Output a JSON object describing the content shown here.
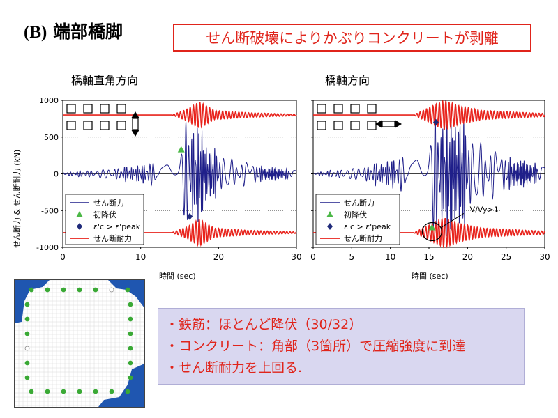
{
  "slide": {
    "title_prefix": "(B)",
    "title": "端部橋脚",
    "callout": "せん断破壊によりかぶりコンクリートが剥離",
    "y_axis_label": "せん断力 & せん断耐力 (kN)",
    "x_axis_label": "時間 (sec)",
    "summary": [
      "・鉄筋：ほとんど降伏（30/32）",
      "・コンクリート：角部（3箇所）で圧縮強度に到達",
      "・せん断耐力を上回る."
    ],
    "colors": {
      "accent_red": "#e0241b",
      "shear_force": "#1f1f8a",
      "capacity": "#e8231c",
      "yield_marker": "#4cb847",
      "peak_marker": "#1f2a7a",
      "summary_bg": "#d9d7f0",
      "section_fill": "#1f56b0",
      "rebar": "#3aa935"
    }
  },
  "chart_data": [
    {
      "type": "line",
      "title": "橋軸直角方向",
      "xlabel": "時間 (sec)",
      "ylabel": "せん断力 & せん断耐力 (kN)",
      "xlim": [
        0,
        30
      ],
      "ylim": [
        -1000,
        1000
      ],
      "xticks": [
        0,
        10,
        20,
        30
      ],
      "yticks": [
        -1000,
        -500,
        0,
        500,
        1000
      ],
      "grid": "dotted horizontal at ±500",
      "legend": [
        "せん断力",
        "初降伏",
        "ε'c > ε'peak",
        "せん断耐力"
      ],
      "legend_position": "bottom-left",
      "series": [
        {
          "name": "せん断力",
          "kind": "response",
          "envelope": [
            [
              0,
              20
            ],
            [
              5,
              80
            ],
            [
              10,
              130
            ],
            [
              13,
              260
            ],
            [
              15,
              500
            ],
            [
              16.5,
              900
            ],
            [
              17.5,
              700
            ],
            [
              19,
              400
            ],
            [
              22,
              200
            ],
            [
              26,
              110
            ],
            [
              30,
              70
            ]
          ]
        },
        {
          "name": "せん断耐力",
          "kind": "capacity",
          "base": 800,
          "disturbance": [
            [
              14,
              0
            ],
            [
              16,
              80
            ],
            [
              17.5,
              180
            ],
            [
              19.5,
              60
            ],
            [
              24,
              30
            ],
            [
              30,
              10
            ]
          ]
        }
      ],
      "points": [
        {
          "name": "初降伏",
          "x": 15.2,
          "y": 330
        },
        {
          "name": "ε'c > ε'peak",
          "x": 16.3,
          "y": -580
        }
      ]
    },
    {
      "type": "line",
      "title": "橋軸方向",
      "xlabel": "時間 (sec)",
      "ylabel": "",
      "xlim": [
        0,
        30
      ],
      "ylim": [
        -1000,
        1000
      ],
      "xticks": [
        0,
        5,
        10,
        15,
        20,
        25,
        30
      ],
      "yticks": [
        -1000,
        -500,
        0,
        500,
        1000
      ],
      "grid": "dotted horizontal at ±500",
      "legend": [
        "せん断力",
        "初降伏",
        "ε'c > ε'peak",
        "せん断耐力"
      ],
      "legend_position": "bottom-left",
      "annotation": "V/Vy>1",
      "series": [
        {
          "name": "せん断力",
          "kind": "response",
          "envelope": [
            [
              0,
              15
            ],
            [
              5,
              100
            ],
            [
              10,
              200
            ],
            [
              13,
              400
            ],
            [
              15,
              800
            ],
            [
              17,
              950
            ],
            [
              19,
              900
            ],
            [
              21,
              500
            ],
            [
              24,
              300
            ],
            [
              27,
              200
            ],
            [
              30,
              140
            ]
          ]
        },
        {
          "name": "せん断耐力",
          "kind": "capacity",
          "base": 800,
          "disturbance": [
            [
              13,
              0
            ],
            [
              15,
              100
            ],
            [
              17,
              200
            ],
            [
              19,
              120
            ],
            [
              22,
              60
            ],
            [
              30,
              20
            ]
          ]
        }
      ],
      "points": [
        {
          "name": "初降伏",
          "x": 15.4,
          "y": -730
        },
        {
          "name": "ε'c > ε'peak",
          "x": 15.9,
          "y": 700
        }
      ]
    }
  ]
}
